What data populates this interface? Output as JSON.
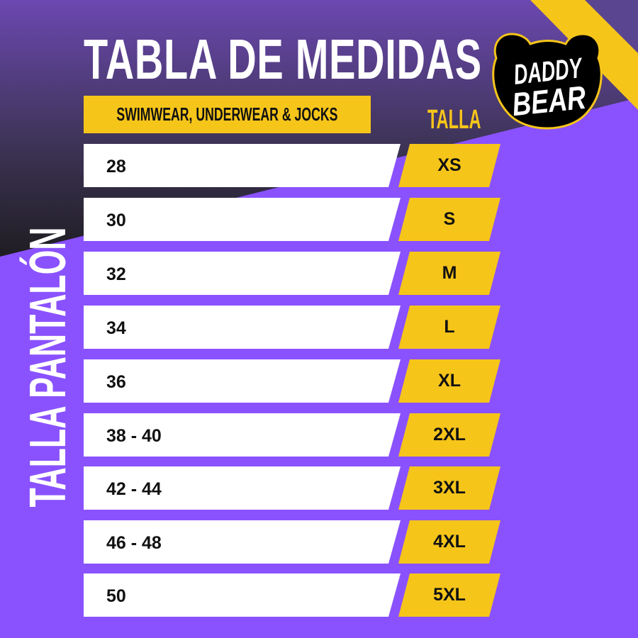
{
  "title": "TABLA DE MEDIDAS",
  "subtitle": "SWIMWEAR, UNDERWEAR & JOCKS",
  "size_header": "TALLA",
  "side_label": "TALLA PANTALÓN",
  "logo_text": "DADDY BEAR",
  "colors": {
    "purple": "#8a52fe",
    "yellow": "#f6c51a",
    "dark": "#2a2532"
  },
  "rows": [
    {
      "pants": "28",
      "size": "XS"
    },
    {
      "pants": "30",
      "size": "S"
    },
    {
      "pants": "32",
      "size": "M"
    },
    {
      "pants": "34",
      "size": "L"
    },
    {
      "pants": "36",
      "size": "XL"
    },
    {
      "pants": "38 - 40",
      "size": "2XL"
    },
    {
      "pants": "42 - 44",
      "size": "3XL"
    },
    {
      "pants": "46 - 48",
      "size": "4XL"
    },
    {
      "pants": "50",
      "size": "5XL"
    }
  ]
}
